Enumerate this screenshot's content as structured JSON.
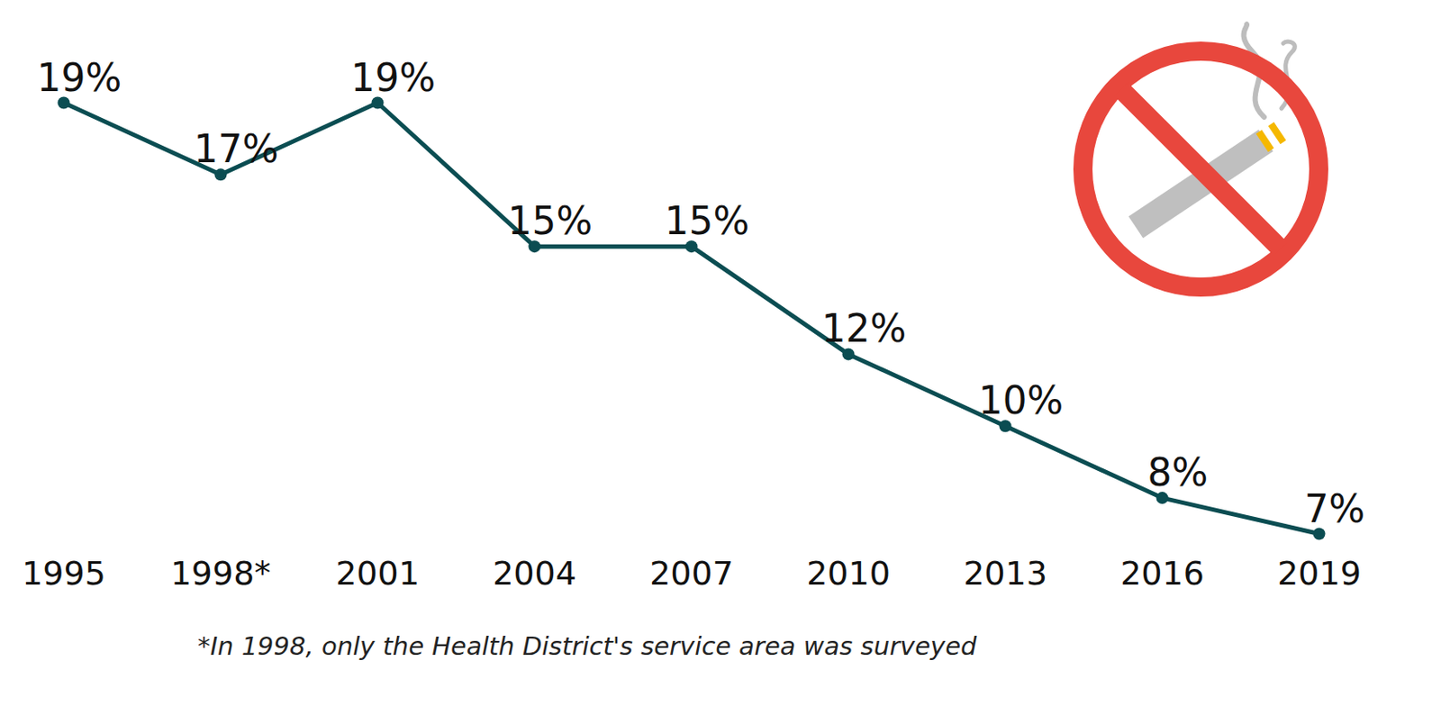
{
  "chart_data": {
    "type": "line",
    "categories": [
      "1995",
      "1998*",
      "2001",
      "2004",
      "2007",
      "2010",
      "2013",
      "2016",
      "2019"
    ],
    "values": [
      19,
      17,
      19,
      15,
      15,
      12,
      10,
      8,
      7
    ],
    "value_labels": [
      "19%",
      "17%",
      "19%",
      "15%",
      "15%",
      "12%",
      "10%",
      "8%",
      "7%"
    ],
    "color": "#0b4d52",
    "marker": "circle",
    "ylim": [
      7,
      19
    ],
    "data_labels": true,
    "tick_labels": "x",
    "annotations": [
      "*In 1998, only the Health District's service area was surveyed"
    ]
  }
}
